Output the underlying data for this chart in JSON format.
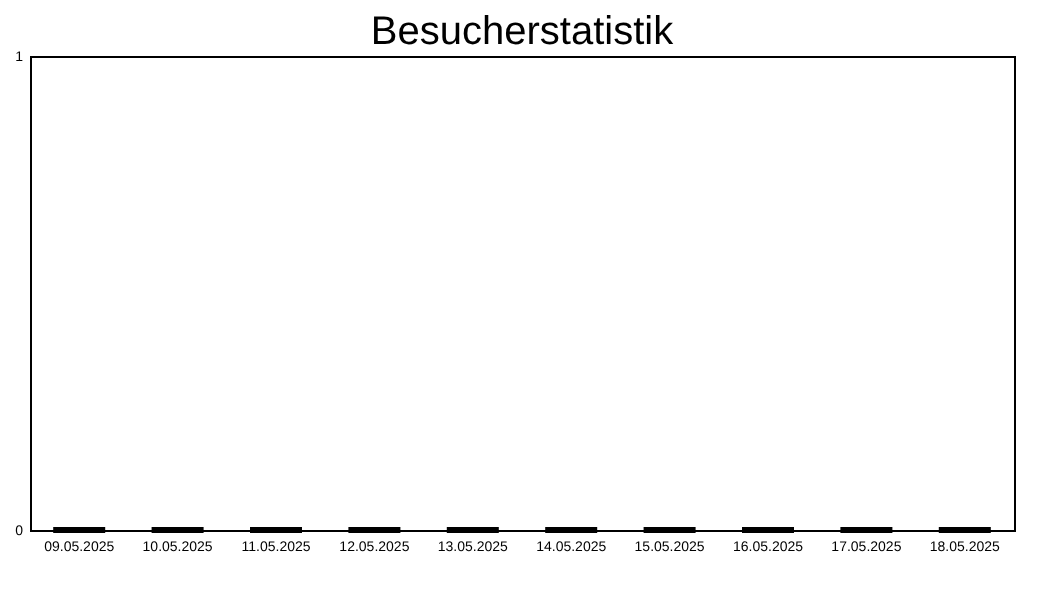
{
  "chart_data": {
    "type": "bar",
    "title": "Besucherstatistik",
    "categories": [
      "09.05.2025",
      "10.05.2025",
      "11.05.2025",
      "12.05.2025",
      "13.05.2025",
      "14.05.2025",
      "15.05.2025",
      "16.05.2025",
      "17.05.2025",
      "18.05.2025"
    ],
    "values": [
      0,
      0,
      0,
      0,
      0,
      0,
      0,
      0,
      0,
      0
    ],
    "color": "#000000",
    "ylim": [
      0,
      1
    ],
    "yticks": [
      0,
      1
    ],
    "grid": false
  }
}
